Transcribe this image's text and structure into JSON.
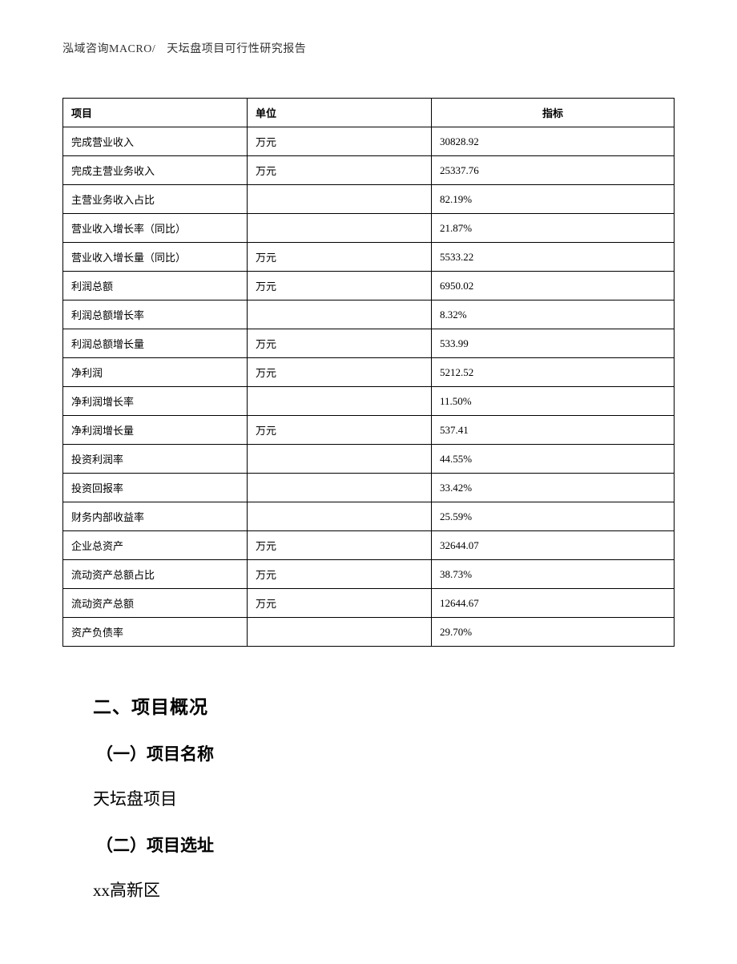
{
  "header": {
    "company": "泓域咨询MACRO/",
    "doc_title": "天坛盘项目可行性研究报告"
  },
  "table": {
    "columns": {
      "item": "项目",
      "unit": "单位",
      "value": "指标"
    },
    "col_widths": [
      "230px",
      "230px",
      "auto"
    ],
    "border_color": "#000000",
    "bg_color": "#ffffff",
    "font_size": 13,
    "header_align": [
      "left",
      "left",
      "center"
    ],
    "cell_align": [
      "left",
      "left",
      "left"
    ],
    "rows": [
      {
        "item": "完成营业收入",
        "unit": "万元",
        "value": "30828.92"
      },
      {
        "item": "完成主营业务收入",
        "unit": "万元",
        "value": "25337.76"
      },
      {
        "item": "主营业务收入占比",
        "unit": "",
        "value": "82.19%"
      },
      {
        "item": "营业收入增长率（同比）",
        "unit": "",
        "value": "21.87%"
      },
      {
        "item": "营业收入增长量（同比）",
        "unit": "万元",
        "value": "5533.22"
      },
      {
        "item": "利润总额",
        "unit": "万元",
        "value": "6950.02"
      },
      {
        "item": "利润总额增长率",
        "unit": "",
        "value": "8.32%"
      },
      {
        "item": "利润总额增长量",
        "unit": "万元",
        "value": "533.99"
      },
      {
        "item": "净利润",
        "unit": "万元",
        "value": "5212.52"
      },
      {
        "item": "净利润增长率",
        "unit": "",
        "value": "11.50%"
      },
      {
        "item": "净利润增长量",
        "unit": "万元",
        "value": "537.41"
      },
      {
        "item": "投资利润率",
        "unit": "",
        "value": "44.55%"
      },
      {
        "item": "投资回报率",
        "unit": "",
        "value": "33.42%"
      },
      {
        "item": "财务内部收益率",
        "unit": "",
        "value": "25.59%"
      },
      {
        "item": "企业总资产",
        "unit": "万元",
        "value": "32644.07"
      },
      {
        "item": "流动资产总额占比",
        "unit": "万元",
        "value": "38.73%"
      },
      {
        "item": "流动资产总额",
        "unit": "万元",
        "value": "12644.67"
      },
      {
        "item": "资产负债率",
        "unit": "",
        "value": "29.70%"
      }
    ]
  },
  "body": {
    "section_title": "二、项目概况",
    "sub1_title": "（一）项目名称",
    "sub1_text": "天坛盘项目",
    "sub2_title": "（二）项目选址",
    "sub2_text": "xx高新区"
  },
  "style": {
    "page_bg": "#ffffff",
    "text_color": "#000000",
    "section_title_fontsize": 23,
    "sub_title_fontsize": 21,
    "body_text_fontsize": 21,
    "header_fontsize": 14
  }
}
